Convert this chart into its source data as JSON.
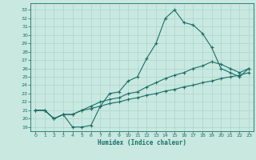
{
  "xlabel": "Humidex (Indice chaleur)",
  "background_color": "#c8e8e0",
  "grid_color": "#b0d8d0",
  "line_color": "#1a7068",
  "spine_color": "#1a7068",
  "xlim": [
    -0.5,
    23.5
  ],
  "ylim": [
    18.5,
    33.8
  ],
  "xticks": [
    0,
    1,
    2,
    3,
    4,
    5,
    6,
    7,
    8,
    9,
    10,
    11,
    12,
    13,
    14,
    15,
    16,
    17,
    18,
    19,
    20,
    21,
    22,
    23
  ],
  "yticks": [
    19,
    20,
    21,
    22,
    23,
    24,
    25,
    26,
    27,
    28,
    29,
    30,
    31,
    32,
    33
  ],
  "series1_x": [
    0,
    1,
    2,
    3,
    4,
    5,
    6,
    7,
    8,
    9,
    10,
    11,
    12,
    13,
    14,
    15,
    16,
    17,
    18,
    19,
    20,
    21,
    22,
    23
  ],
  "series1_y": [
    21.0,
    21.0,
    20.0,
    20.5,
    19.0,
    19.0,
    19.2,
    21.5,
    23.0,
    23.2,
    24.5,
    25.0,
    27.2,
    29.0,
    32.0,
    33.0,
    31.5,
    31.2,
    30.2,
    28.5,
    26.0,
    25.5,
    25.0,
    26.0
  ],
  "series2_x": [
    0,
    1,
    2,
    3,
    4,
    5,
    6,
    7,
    8,
    9,
    10,
    11,
    12,
    13,
    14,
    15,
    16,
    17,
    18,
    19,
    20,
    21,
    22,
    23
  ],
  "series2_y": [
    21.0,
    21.0,
    20.0,
    20.5,
    20.5,
    21.0,
    21.5,
    22.0,
    22.3,
    22.5,
    23.0,
    23.2,
    23.8,
    24.3,
    24.8,
    25.2,
    25.5,
    26.0,
    26.3,
    26.8,
    26.5,
    26.0,
    25.5,
    26.0
  ],
  "series3_x": [
    0,
    1,
    2,
    3,
    4,
    5,
    6,
    7,
    8,
    9,
    10,
    11,
    12,
    13,
    14,
    15,
    16,
    17,
    18,
    19,
    20,
    21,
    22,
    23
  ],
  "series3_y": [
    21.0,
    21.0,
    20.0,
    20.5,
    20.5,
    21.0,
    21.2,
    21.5,
    21.8,
    22.0,
    22.3,
    22.5,
    22.8,
    23.0,
    23.3,
    23.5,
    23.8,
    24.0,
    24.3,
    24.5,
    24.8,
    25.0,
    25.2,
    25.5
  ]
}
